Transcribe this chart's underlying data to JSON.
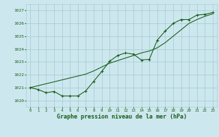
{
  "title": "Graphe pression niveau de la mer (hPa)",
  "background_color": "#cce8ee",
  "grid_color": "#aaccd4",
  "line_color": "#1a5c1a",
  "xlim": [
    -0.5,
    23.5
  ],
  "ylim": [
    1019.5,
    1027.5
  ],
  "yticks": [
    1020,
    1021,
    1022,
    1023,
    1024,
    1025,
    1026,
    1027
  ],
  "xticks": [
    0,
    1,
    2,
    3,
    4,
    5,
    6,
    7,
    8,
    9,
    10,
    11,
    12,
    13,
    14,
    15,
    16,
    17,
    18,
    19,
    20,
    21,
    22,
    23
  ],
  "series1_x": [
    0,
    1,
    2,
    3,
    4,
    5,
    6,
    7,
    8,
    9,
    10,
    11,
    12,
    13,
    14,
    15,
    16,
    17,
    18,
    19,
    20,
    21,
    22,
    23
  ],
  "series1_y": [
    1021.0,
    1020.85,
    1020.6,
    1020.7,
    1020.35,
    1020.35,
    1020.35,
    1020.75,
    1021.5,
    1022.25,
    1023.05,
    1023.5,
    1023.7,
    1023.6,
    1023.15,
    1023.2,
    1024.7,
    1025.4,
    1026.0,
    1026.3,
    1026.3,
    1026.65,
    1026.7,
    1026.85
  ],
  "series2_x": [
    0,
    1,
    2,
    3,
    4,
    5,
    6,
    7,
    8,
    9,
    10,
    11,
    12,
    13,
    14,
    15,
    16,
    17,
    18,
    19,
    20,
    21,
    22,
    23
  ],
  "series2_y": [
    1021.0,
    1021.15,
    1021.3,
    1021.45,
    1021.6,
    1021.75,
    1021.9,
    1022.05,
    1022.3,
    1022.6,
    1022.9,
    1023.1,
    1023.3,
    1023.5,
    1023.7,
    1023.85,
    1024.1,
    1024.5,
    1025.0,
    1025.5,
    1026.0,
    1026.3,
    1026.55,
    1026.75
  ]
}
